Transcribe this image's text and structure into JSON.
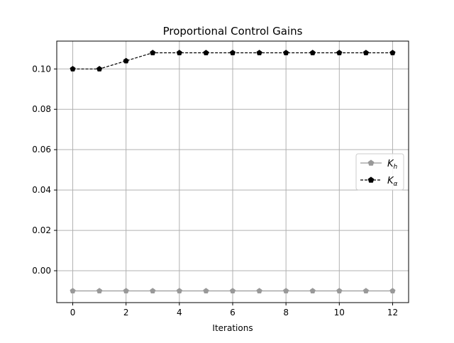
{
  "chart_data": {
    "type": "line",
    "title": "Proportional Control Gains",
    "xlabel": "Iterations",
    "ylabel": "",
    "xlim": [
      -0.6,
      12.6
    ],
    "ylim": [
      -0.0158,
      0.1138
    ],
    "x": [
      0,
      1,
      2,
      3,
      4,
      5,
      6,
      7,
      8,
      9,
      10,
      11,
      12
    ],
    "xticks": [
      0,
      2,
      4,
      6,
      8,
      10,
      12
    ],
    "yticks": [
      0.0,
      0.02,
      0.04,
      0.06,
      0.08,
      0.1
    ],
    "xtick_labels": [
      "0",
      "2",
      "4",
      "6",
      "8",
      "10",
      "12"
    ],
    "ytick_labels": [
      "0.00",
      "0.02",
      "0.04",
      "0.06",
      "0.08",
      "0.10"
    ],
    "grid": true,
    "legend_position": "center-right",
    "series": [
      {
        "name": "K_h",
        "legend_main": "K",
        "legend_sub": "h",
        "color": "#999999",
        "line_style": "solid",
        "marker": "pentagon",
        "values": [
          -0.01,
          -0.01,
          -0.01,
          -0.01,
          -0.01,
          -0.01,
          -0.01,
          -0.01,
          -0.01,
          -0.01,
          -0.01,
          -0.01,
          -0.01
        ]
      },
      {
        "name": "K_α",
        "legend_main": "K",
        "legend_sub": "α",
        "color": "#000000",
        "line_style": "dashed",
        "marker": "pentagon",
        "values": [
          0.1,
          0.1,
          0.104,
          0.108,
          0.108,
          0.108,
          0.108,
          0.108,
          0.108,
          0.108,
          0.108,
          0.108,
          0.108
        ]
      }
    ]
  }
}
